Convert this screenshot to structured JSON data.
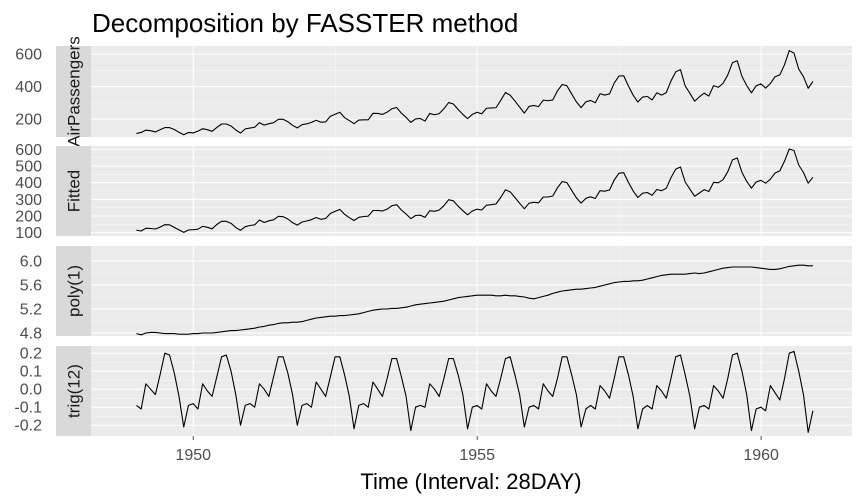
{
  "chart_data": {
    "type": "line",
    "title": "Decomposition by FASSTER method",
    "xlabel": "Time (Interval: 28DAY)",
    "x_ticks": [
      "1950",
      "1955",
      "1960"
    ],
    "x_tick_values": [
      1950,
      1955,
      1960
    ],
    "xlim": [
      1948.2,
      1961.6
    ],
    "x_start": 1949.0,
    "x_step": 0.0833,
    "grid": true,
    "colors": {
      "panel_bg": "#ebebeb",
      "strip_bg": "#d9d9d9",
      "grid": "#ffffff",
      "line": "#000000"
    },
    "panels": [
      {
        "strip": "AirPassengers",
        "ylim": [
          90,
          650
        ],
        "y_ticks": [
          200,
          400,
          600
        ],
        "y_tick_labels": [
          "200",
          "400",
          "600"
        ],
        "values": [
          112,
          118,
          132,
          129,
          121,
          135,
          148,
          148,
          136,
          119,
          104,
          118,
          115,
          126,
          141,
          135,
          125,
          149,
          170,
          170,
          158,
          133,
          114,
          140,
          145,
          150,
          178,
          163,
          172,
          178,
          199,
          199,
          184,
          162,
          146,
          166,
          171,
          180,
          193,
          181,
          183,
          218,
          230,
          242,
          209,
          191,
          172,
          194,
          196,
          196,
          236,
          235,
          229,
          243,
          264,
          272,
          237,
          211,
          180,
          201,
          204,
          188,
          235,
          227,
          234,
          264,
          302,
          293,
          259,
          229,
          203,
          229,
          242,
          233,
          267,
          269,
          270,
          315,
          364,
          347,
          312,
          274,
          237,
          278,
          284,
          277,
          317,
          313,
          318,
          374,
          413,
          405,
          355,
          306,
          271,
          306,
          315,
          301,
          356,
          348,
          355,
          422,
          465,
          467,
          404,
          347,
          305,
          336,
          340,
          318,
          362,
          348,
          363,
          435,
          491,
          505,
          404,
          359,
          310,
          337,
          360,
          342,
          406,
          396,
          420,
          472,
          548,
          559,
          463,
          407,
          362,
          405,
          417,
          391,
          419,
          461,
          472,
          535,
          622,
          606,
          508,
          461,
          390,
          432
        ]
      },
      {
        "strip": "Fitted",
        "ylim": [
          80,
          620
        ],
        "y_ticks": [
          100,
          200,
          300,
          400,
          500,
          600
        ],
        "y_tick_labels": [
          "100",
          "200",
          "300",
          "400",
          "500",
          "600"
        ],
        "values": [
          115,
          110,
          127,
          125,
          122,
          133,
          148,
          147,
          132,
          117,
          102,
          116,
          118,
          121,
          138,
          132,
          123,
          149,
          168,
          168,
          156,
          131,
          114,
          136,
          143,
          147,
          176,
          161,
          171,
          177,
          198,
          196,
          182,
          160,
          145,
          164,
          170,
          178,
          191,
          180,
          185,
          215,
          228,
          240,
          210,
          190,
          173,
          192,
          197,
          199,
          233,
          233,
          230,
          241,
          262,
          268,
          236,
          212,
          184,
          203,
          205,
          192,
          232,
          228,
          236,
          262,
          298,
          291,
          259,
          232,
          207,
          230,
          241,
          236,
          265,
          268,
          272,
          311,
          357,
          345,
          311,
          277,
          243,
          277,
          282,
          279,
          314,
          314,
          320,
          369,
          407,
          400,
          354,
          309,
          277,
          306,
          315,
          305,
          352,
          349,
          356,
          416,
          457,
          460,
          402,
          350,
          311,
          337,
          341,
          324,
          359,
          352,
          366,
          430,
          481,
          494,
          404,
          361,
          318,
          338,
          358,
          347,
          402,
          399,
          418,
          466,
          537,
          548,
          462,
          408,
          367,
          404,
          414,
          397,
          421,
          458,
          471,
          529,
          602,
          593,
          506,
          461,
          397,
          432
        ]
      },
      {
        "strip": "poly(1)",
        "ylim": [
          4.75,
          6.25
        ],
        "y_ticks": [
          4.8,
          5.2,
          5.6,
          6.0
        ],
        "y_tick_labels": [
          "4.8",
          "5.2",
          "5.6",
          "6.0"
        ],
        "values": [
          4.79,
          4.77,
          4.8,
          4.81,
          4.81,
          4.8,
          4.79,
          4.79,
          4.79,
          4.78,
          4.78,
          4.78,
          4.79,
          4.79,
          4.8,
          4.8,
          4.8,
          4.81,
          4.82,
          4.83,
          4.84,
          4.84,
          4.85,
          4.86,
          4.87,
          4.88,
          4.9,
          4.91,
          4.93,
          4.94,
          4.96,
          4.97,
          4.97,
          4.98,
          4.98,
          4.99,
          5.01,
          5.03,
          5.05,
          5.06,
          5.07,
          5.08,
          5.08,
          5.09,
          5.09,
          5.1,
          5.11,
          5.12,
          5.14,
          5.16,
          5.18,
          5.19,
          5.2,
          5.2,
          5.21,
          5.21,
          5.22,
          5.23,
          5.25,
          5.27,
          5.28,
          5.29,
          5.3,
          5.31,
          5.32,
          5.33,
          5.35,
          5.37,
          5.39,
          5.4,
          5.41,
          5.42,
          5.43,
          5.43,
          5.43,
          5.43,
          5.42,
          5.42,
          5.43,
          5.42,
          5.42,
          5.41,
          5.4,
          5.38,
          5.37,
          5.39,
          5.41,
          5.43,
          5.46,
          5.48,
          5.5,
          5.51,
          5.52,
          5.53,
          5.53,
          5.54,
          5.55,
          5.56,
          5.58,
          5.6,
          5.62,
          5.64,
          5.65,
          5.66,
          5.66,
          5.67,
          5.67,
          5.68,
          5.7,
          5.72,
          5.74,
          5.76,
          5.77,
          5.78,
          5.78,
          5.78,
          5.78,
          5.79,
          5.8,
          5.79,
          5.8,
          5.82,
          5.84,
          5.86,
          5.88,
          5.89,
          5.9,
          5.9,
          5.9,
          5.9,
          5.9,
          5.89,
          5.88,
          5.87,
          5.86,
          5.86,
          5.87,
          5.89,
          5.91,
          5.92,
          5.93,
          5.93,
          5.92,
          5.92
        ]
      },
      {
        "strip": "trig(12)",
        "ylim": [
          -0.26,
          0.24
        ],
        "y_ticks": [
          -0.2,
          -0.1,
          0.0,
          0.1,
          0.2
        ],
        "y_tick_labels": [
          "-0.2",
          "-0.1",
          "0.0",
          "0.1",
          "0.2"
        ],
        "values": [
          -0.09,
          -0.11,
          0.03,
          0.0,
          -0.03,
          0.08,
          0.2,
          0.19,
          0.09,
          -0.04,
          -0.21,
          -0.09,
          -0.08,
          -0.11,
          0.03,
          -0.01,
          -0.04,
          0.07,
          0.18,
          0.19,
          0.1,
          -0.03,
          -0.2,
          -0.09,
          -0.08,
          -0.1,
          0.03,
          0.0,
          -0.04,
          0.07,
          0.18,
          0.18,
          0.09,
          -0.03,
          -0.2,
          -0.09,
          -0.08,
          -0.1,
          0.04,
          0.0,
          -0.04,
          0.07,
          0.18,
          0.18,
          0.08,
          -0.04,
          -0.22,
          -0.09,
          -0.08,
          -0.1,
          0.04,
          0.0,
          -0.04,
          0.06,
          0.17,
          0.17,
          0.07,
          -0.04,
          -0.23,
          -0.1,
          -0.09,
          -0.1,
          0.03,
          0.0,
          -0.04,
          0.06,
          0.17,
          0.17,
          0.08,
          -0.03,
          -0.22,
          -0.1,
          -0.09,
          -0.11,
          0.03,
          -0.01,
          -0.04,
          0.06,
          0.17,
          0.18,
          0.08,
          -0.03,
          -0.21,
          -0.1,
          -0.09,
          -0.11,
          0.03,
          -0.01,
          -0.04,
          0.06,
          0.18,
          0.18,
          0.08,
          -0.03,
          -0.21,
          -0.11,
          -0.09,
          -0.11,
          0.02,
          -0.01,
          -0.05,
          0.06,
          0.18,
          0.18,
          0.08,
          -0.04,
          -0.22,
          -0.11,
          -0.09,
          -0.11,
          0.02,
          -0.01,
          -0.05,
          0.06,
          0.18,
          0.19,
          0.08,
          -0.04,
          -0.22,
          -0.1,
          -0.09,
          -0.11,
          0.02,
          -0.01,
          -0.05,
          0.06,
          0.19,
          0.2,
          0.1,
          -0.03,
          -0.23,
          -0.11,
          -0.1,
          -0.12,
          0.02,
          -0.02,
          -0.06,
          0.06,
          0.2,
          0.21,
          0.1,
          -0.03,
          -0.24,
          -0.12
        ]
      }
    ]
  }
}
